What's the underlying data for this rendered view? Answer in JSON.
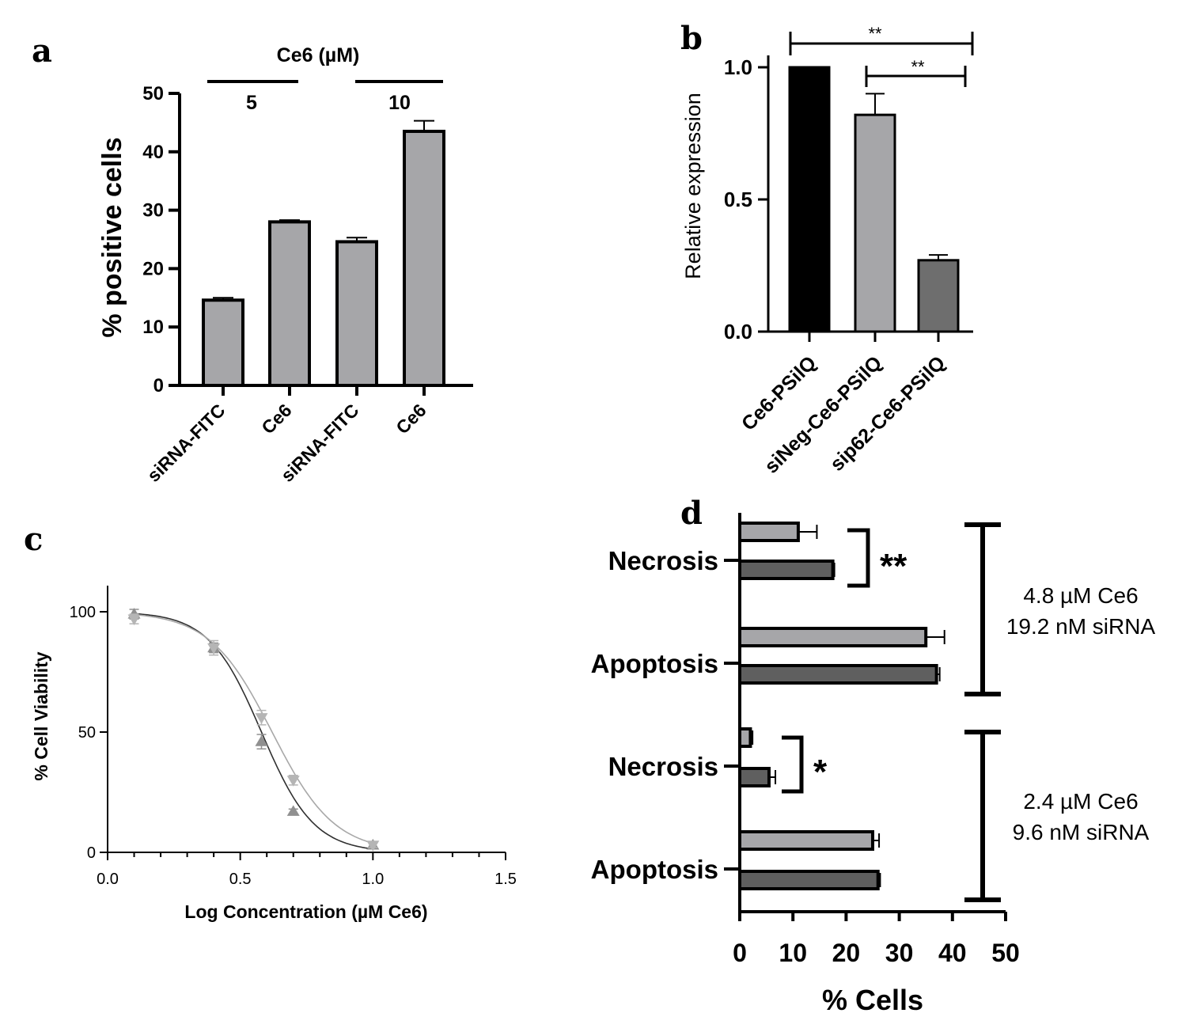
{
  "chart_data": [
    {
      "panel": "a",
      "type": "bar",
      "ylabel": "% positive cells",
      "ylim": [
        0,
        50
      ],
      "yticks": [
        "0",
        "10",
        "20",
        "30",
        "40",
        "50"
      ],
      "categories": [
        "siRNA-FITC",
        "Ce6",
        "siRNA-FITC",
        "Ce6"
      ],
      "values": [
        14.6,
        28.0,
        24.6,
        43.5
      ],
      "errors": [
        0.4,
        0.3,
        0.7,
        1.8
      ],
      "group_title": "Ce6 (µM)",
      "groups": [
        "5",
        "10"
      ],
      "bar_color": "#a6a6a9"
    },
    {
      "panel": "b",
      "type": "bar",
      "ylabel": "Relative expression",
      "ylim": [
        0,
        1.0
      ],
      "yticks": [
        "0.0",
        "0.5",
        "1.0"
      ],
      "categories": [
        "Ce6-PSilQ",
        "siNeg-Ce6-PSilQ",
        "sip62-Ce6-PSilQ"
      ],
      "values": [
        1.0,
        0.82,
        0.27
      ],
      "errors": [
        0,
        0.08,
        0.02
      ],
      "colors": [
        "#000000",
        "#a6a6a9",
        "#6e6e6e"
      ],
      "significance": [
        "**",
        "**"
      ]
    },
    {
      "panel": "c",
      "type": "line",
      "xlabel": "Log Concentration (µM Ce6)",
      "ylabel": "% Cell Viability",
      "xlim": [
        0,
        1.5
      ],
      "ylim": [
        0,
        100
      ],
      "xticks": [
        "0.0",
        "0.5",
        "1.0",
        "1.5"
      ],
      "yticks": [
        "0",
        "50",
        "100"
      ],
      "series": [
        {
          "name": "triangle-up",
          "color": "#909090",
          "x": [
            0.1,
            0.4,
            0.58,
            0.7,
            1.0
          ],
          "y": [
            99,
            85,
            46,
            17,
            3
          ],
          "err": [
            2,
            2,
            3,
            1,
            1
          ],
          "ic50_log": 0.58,
          "hill": 4.4
        },
        {
          "name": "triangle-down",
          "color": "#b5b5b5",
          "x": [
            0.1,
            0.4,
            0.58,
            0.7,
            1.0
          ],
          "y": [
            97,
            85,
            56,
            30,
            3
          ],
          "err": [
            2,
            3,
            3,
            2,
            1
          ],
          "ic50_log": 0.62,
          "hill": 3.7
        }
      ]
    },
    {
      "panel": "d",
      "type": "bar",
      "orientation": "horizontal",
      "xlabel": "% Cells",
      "xlim": [
        0,
        50
      ],
      "xticks": [
        "0",
        "10",
        "20",
        "30",
        "40",
        "50"
      ],
      "categories": [
        "Necrosis",
        "Apoptosis",
        "Necrosis",
        "Apoptosis"
      ],
      "series": [
        {
          "name": "light",
          "color": "#a6a6a9",
          "values": [
            11,
            35,
            2,
            25
          ],
          "errors": [
            3.5,
            3.5,
            0.4,
            1.2
          ]
        },
        {
          "name": "dark",
          "color": "#5f5f5f",
          "values": [
            17.5,
            37,
            5.5,
            26
          ],
          "errors": [
            0.3,
            0.6,
            1.2,
            0.4
          ]
        }
      ],
      "significance": [
        "**",
        "*"
      ],
      "group_labels": [
        [
          "4.8 µM Ce6",
          "19.2 nM siRNA"
        ],
        [
          "2.4 µM Ce6",
          "9.6 nM siRNA"
        ]
      ]
    }
  ]
}
